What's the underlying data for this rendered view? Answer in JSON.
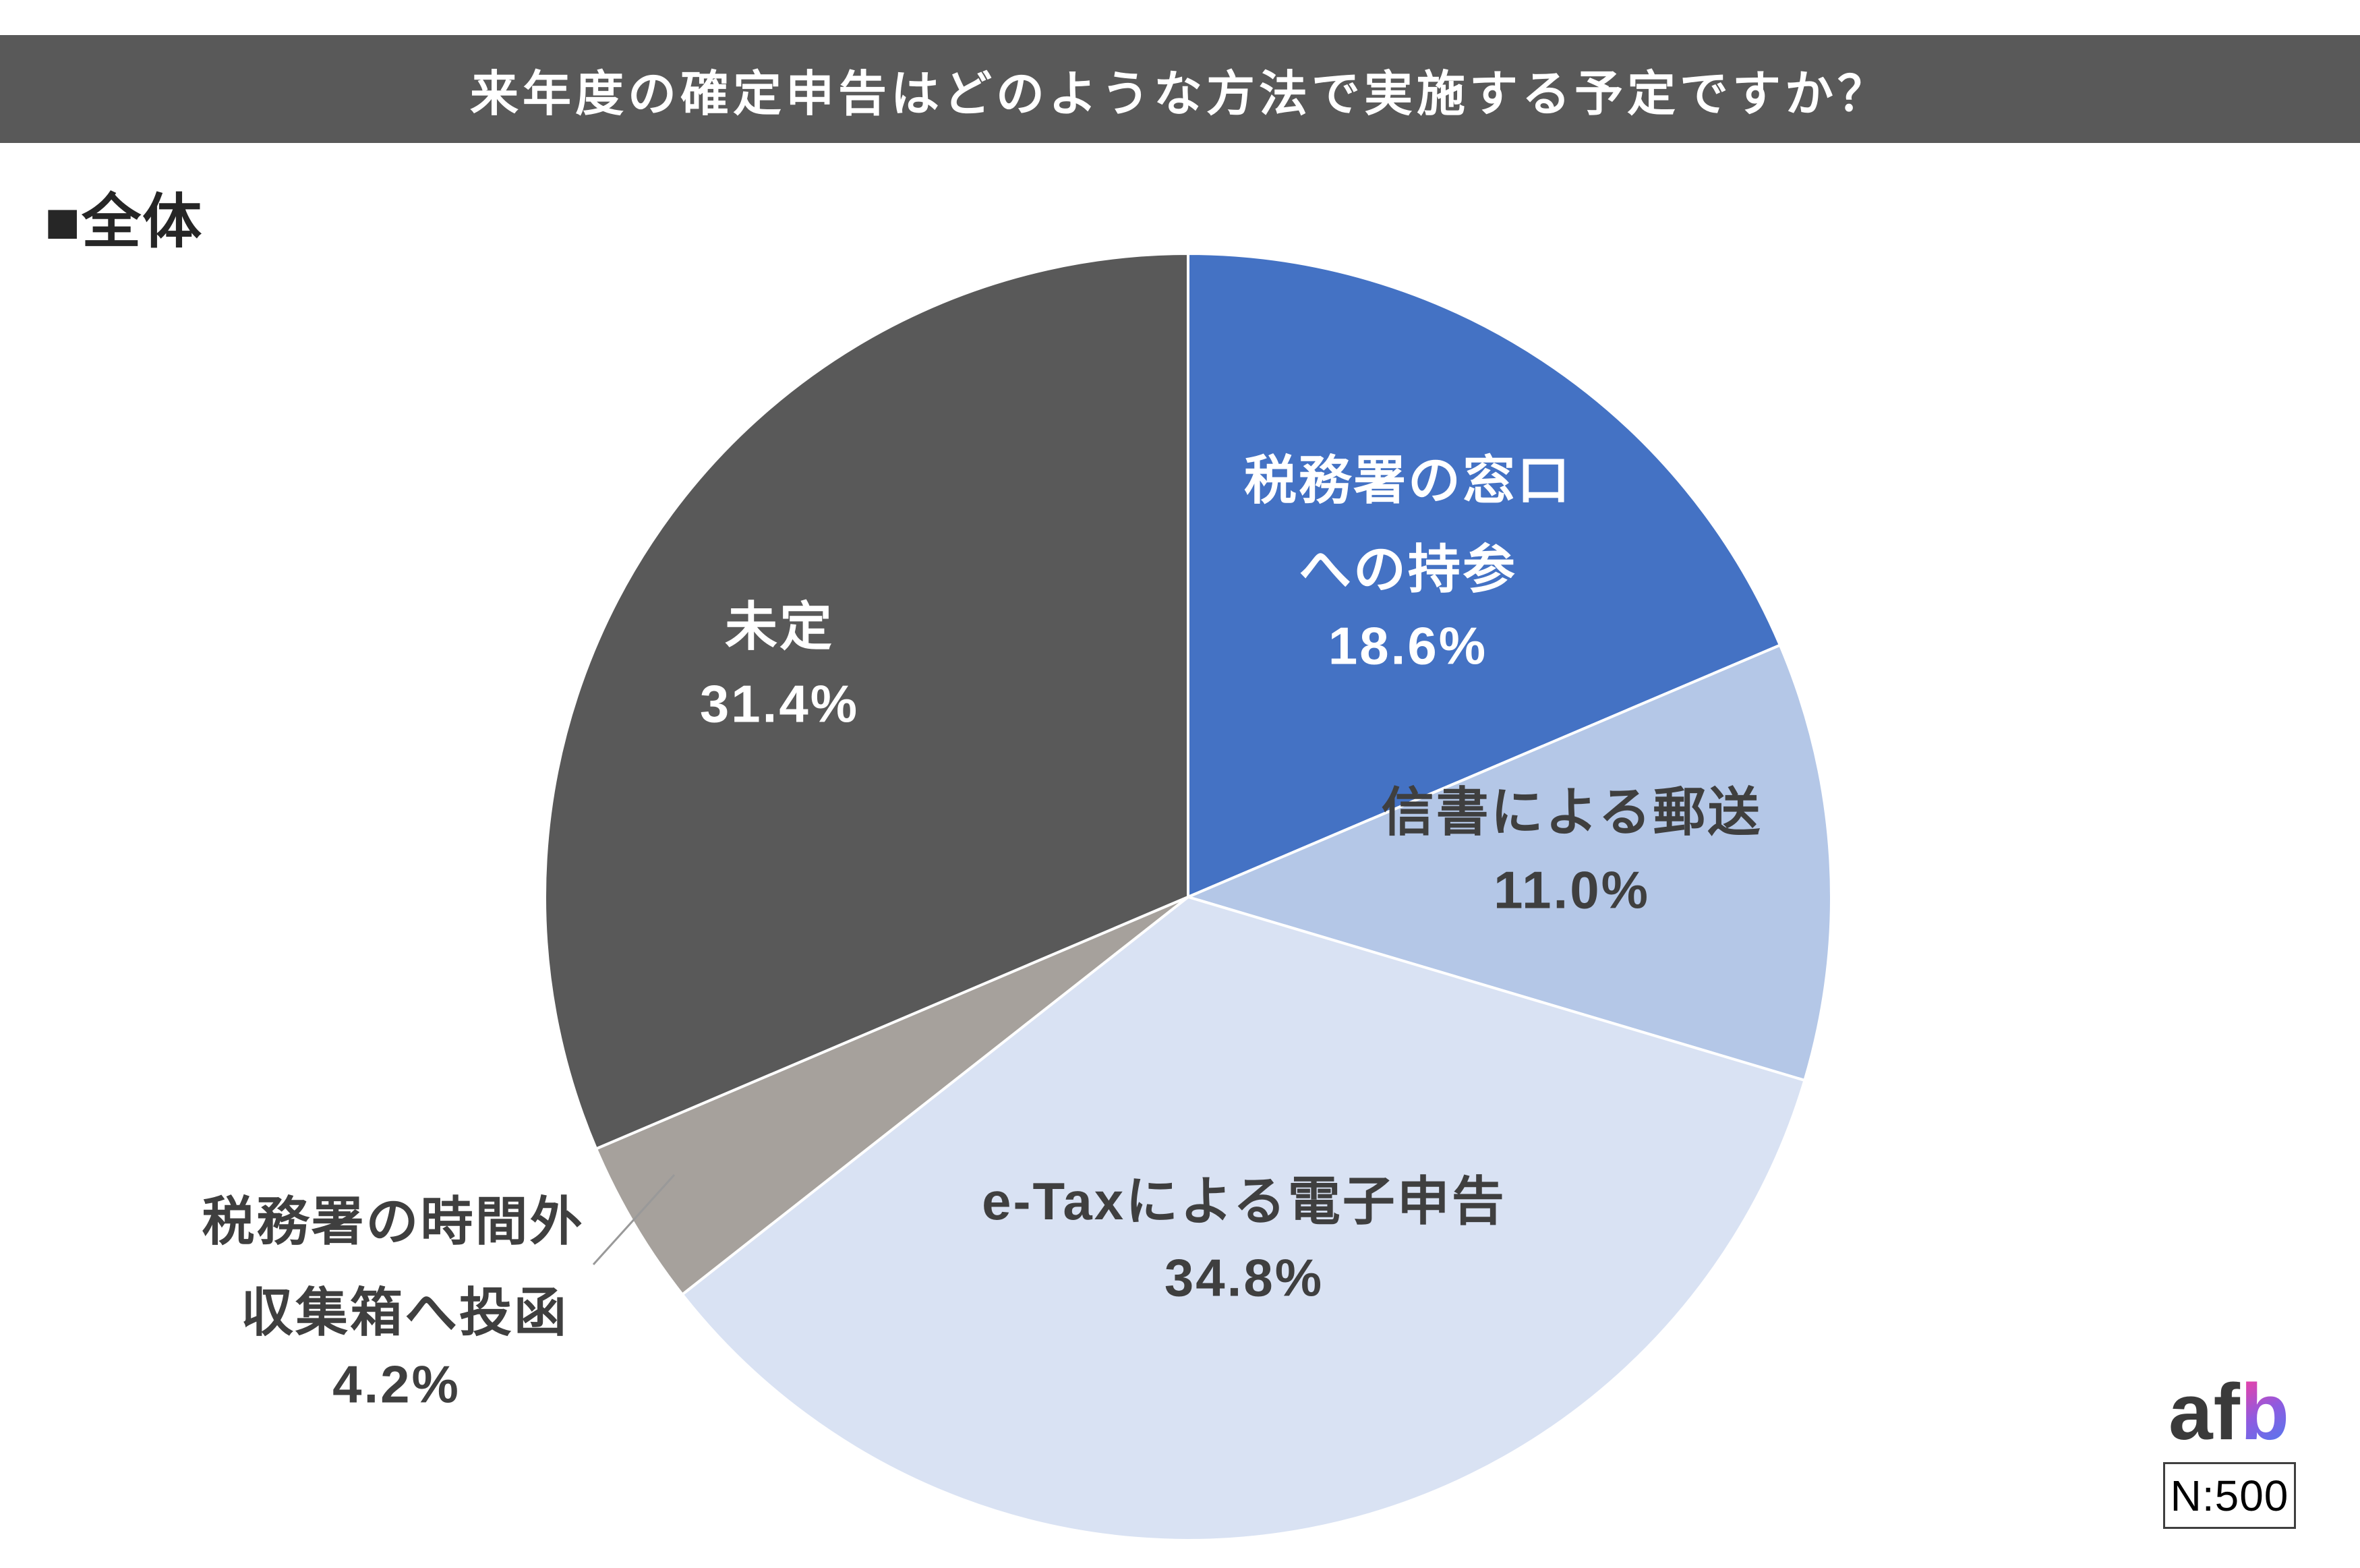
{
  "header": {
    "title": "来年度の確定申告はどのような方法で実施する予定ですか？",
    "bg_color": "#595959",
    "text_color": "#FFFFFF"
  },
  "section_label": {
    "text": "■全体"
  },
  "chart_data": {
    "type": "pie",
    "title": "来年度の確定申告はどのような方法で実施する予定ですか？",
    "group": "全体",
    "sample_size": "N:500",
    "start_angle_deg": 0,
    "direction": "clockwise",
    "total": 100,
    "slices": [
      {
        "label": "税務署の窓口への持参",
        "value_pct": 18.6,
        "pct_label": "18.6%",
        "color": "#4472C4",
        "text_color": "#FFFFFF",
        "lines": [
          "税務署の窓口",
          "への持参"
        ]
      },
      {
        "label": "信書による郵送",
        "value_pct": 11.0,
        "pct_label": "11.0%",
        "color": "#B4C7E7",
        "text_color": "#3F3F3F",
        "lines": [
          "信書による郵送"
        ]
      },
      {
        "label": "e-Taxによる電子申告",
        "value_pct": 34.8,
        "pct_label": "34.8%",
        "color": "#D9E2F3",
        "text_color": "#3F3F3F",
        "lines": [
          "e-Taxによる電子申告"
        ]
      },
      {
        "label": "税務署の時間外収集箱へ投函",
        "value_pct": 4.2,
        "pct_label": "4.2%",
        "color": "#A6A19C",
        "text_color": "#3F3F3F",
        "lines": [
          "税務署の時間外",
          "収集箱へ投函"
        ],
        "label_outside": true
      },
      {
        "label": "未定",
        "value_pct": 31.4,
        "pct_label": "31.4%",
        "color": "#595959",
        "text_color": "#FFFFFF",
        "lines": [
          "未定"
        ]
      }
    ]
  },
  "footer": {
    "logo": {
      "text_dark": "af",
      "text_gradient": "b",
      "dark_color": "#3A3A3A",
      "gradient_colors": [
        "#FA3C9D",
        "#8E5BE0",
        "#4680F2"
      ]
    },
    "sample_badge": "N:500"
  }
}
